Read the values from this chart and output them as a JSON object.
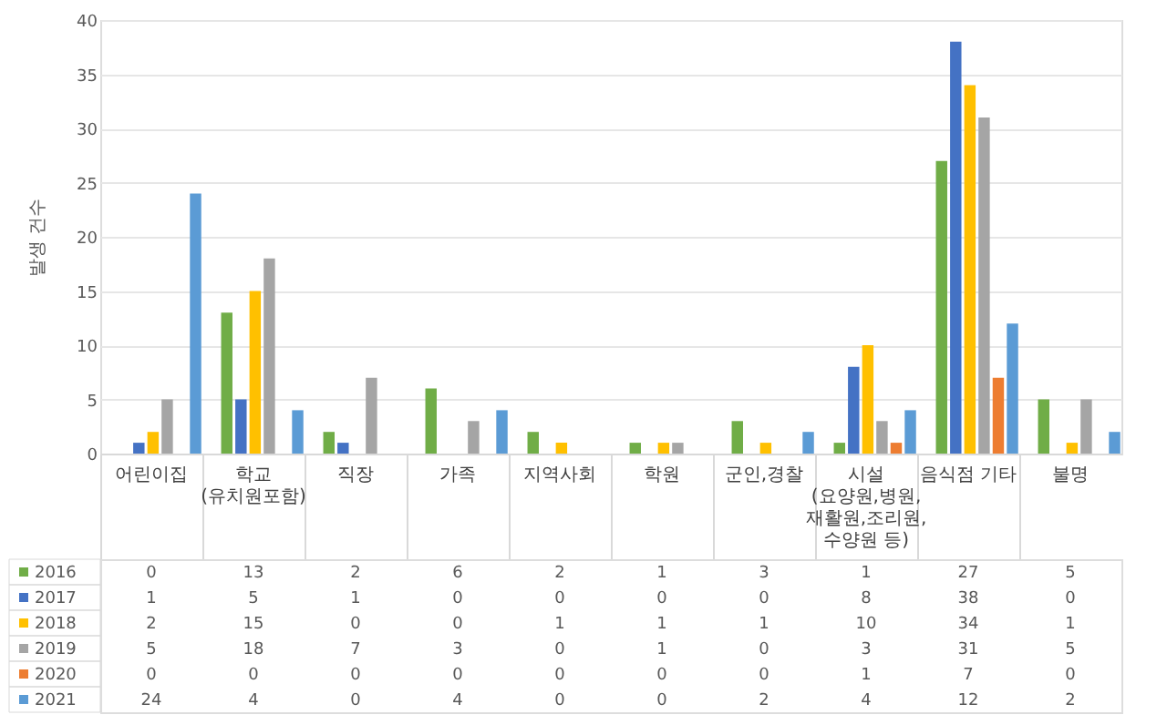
{
  "chart_data": {
    "type": "bar",
    "ylabel": "발생 건수",
    "categories": [
      "어린이집",
      "학교\n(유치원포함)",
      "직장",
      "가족",
      "지역사회",
      "학원",
      "군인,경찰",
      "시설\n(요양원,병원,\n재활원,조리원,\n수양원 등)",
      "음식점 기타",
      "불명"
    ],
    "series": [
      {
        "name": "2016",
        "color": "#70ad47",
        "values": [
          0,
          13,
          2,
          6,
          2,
          1,
          3,
          1,
          27,
          5
        ]
      },
      {
        "name": "2017",
        "color": "#4472c4",
        "values": [
          1,
          5,
          1,
          0,
          0,
          0,
          0,
          8,
          38,
          0
        ]
      },
      {
        "name": "2018",
        "color": "#ffc000",
        "values": [
          2,
          15,
          0,
          0,
          1,
          1,
          1,
          10,
          34,
          1
        ]
      },
      {
        "name": "2019",
        "color": "#a5a5a5",
        "values": [
          5,
          18,
          7,
          3,
          0,
          1,
          0,
          3,
          31,
          5
        ]
      },
      {
        "name": "2020",
        "color": "#ed7d31",
        "values": [
          0,
          0,
          0,
          0,
          0,
          0,
          0,
          1,
          7,
          0
        ]
      },
      {
        "name": "2021",
        "color": "#5b9bd5",
        "values": [
          24,
          4,
          0,
          4,
          0,
          0,
          2,
          4,
          12,
          2
        ]
      }
    ],
    "ylim": [
      0,
      40
    ],
    "yticks": [
      0,
      5,
      10,
      15,
      20,
      25,
      30,
      35,
      40
    ],
    "grid": "y",
    "data_labels": true,
    "legend": "bottom left"
  }
}
